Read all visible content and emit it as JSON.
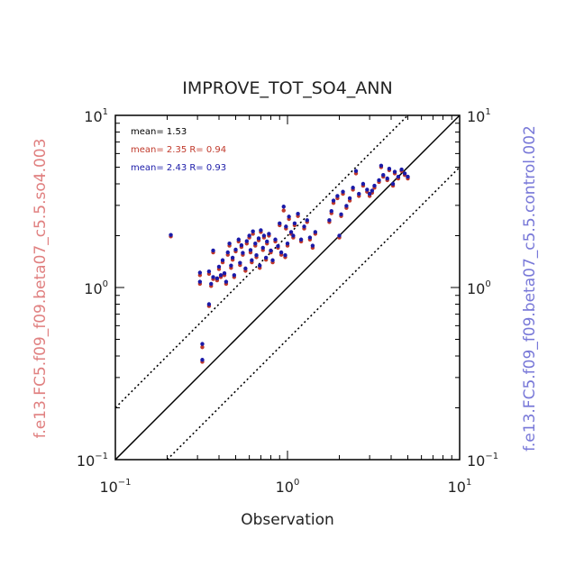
{
  "chart_data": {
    "type": "scatter",
    "title": "IMPROVE_TOT_SO4_ANN",
    "xlabel": "Observation",
    "ylabel_left": "f.e13.FC5.f09_f09.beta07_c5.5.so4.003",
    "ylabel_right": "f.e13.FC5.f09_f09.beta07_c5.5.control.002",
    "xscale": "log",
    "yscale": "log",
    "xlim": [
      0.1,
      10
    ],
    "ylim": [
      0.1,
      10
    ],
    "ticks": [
      {
        "value": 0.1,
        "base": "10",
        "exp": "−1"
      },
      {
        "value": 1,
        "base": "10",
        "exp": "0"
      },
      {
        "value": 10,
        "base": "10",
        "exp": "1"
      }
    ],
    "reference_lines": [
      {
        "name": "1:1",
        "factor": 1,
        "style": "solid"
      },
      {
        "name": "2:1",
        "factor": 2,
        "style": "dotted"
      },
      {
        "name": "1:2",
        "factor": 0.5,
        "style": "dotted"
      }
    ],
    "stats": [
      {
        "text": "mean= 1.53",
        "color": "#000000"
      },
      {
        "text": "mean= 2.35 R= 0.94",
        "color": "#c0392b"
      },
      {
        "text": "mean= 2.43 R= 0.93",
        "color": "#1a1aa8"
      }
    ],
    "series": [
      {
        "name": "f.e13.FC5.f09_f09.beta07_c5.5.so4.003",
        "color": "#c0392b",
        "points": []
      },
      {
        "name": "f.e13.FC5.f09_f09.beta07_c5.5.control.002",
        "color": "#1a1aa8",
        "points": []
      }
    ],
    "scatter_points": [
      [
        0.21,
        1.98,
        2.02
      ],
      [
        0.31,
        1.05,
        1.08
      ],
      [
        0.31,
        1.18,
        1.22
      ],
      [
        0.32,
        0.45,
        0.47
      ],
      [
        0.32,
        0.37,
        0.38
      ],
      [
        0.35,
        0.78,
        0.8
      ],
      [
        0.35,
        1.2,
        1.24
      ],
      [
        0.36,
        1.02,
        1.05
      ],
      [
        0.37,
        1.12,
        1.15
      ],
      [
        0.37,
        1.6,
        1.64
      ],
      [
        0.39,
        1.1,
        1.13
      ],
      [
        0.4,
        1.28,
        1.32
      ],
      [
        0.41,
        1.15,
        1.18
      ],
      [
        0.42,
        1.4,
        1.44
      ],
      [
        0.43,
        1.18,
        1.21
      ],
      [
        0.44,
        1.05,
        1.08
      ],
      [
        0.45,
        1.55,
        1.6
      ],
      [
        0.46,
        1.75,
        1.8
      ],
      [
        0.47,
        1.3,
        1.34
      ],
      [
        0.48,
        1.45,
        1.49
      ],
      [
        0.49,
        1.15,
        1.18
      ],
      [
        0.5,
        1.62,
        1.66
      ],
      [
        0.52,
        1.85,
        1.9
      ],
      [
        0.53,
        1.35,
        1.39
      ],
      [
        0.54,
        1.72,
        1.76
      ],
      [
        0.55,
        1.55,
        1.59
      ],
      [
        0.57,
        1.25,
        1.29
      ],
      [
        0.58,
        1.8,
        1.86
      ],
      [
        0.6,
        1.95,
        2.0
      ],
      [
        0.61,
        1.6,
        1.65
      ],
      [
        0.62,
        1.4,
        1.44
      ],
      [
        0.63,
        2.05,
        2.12
      ],
      [
        0.65,
        1.75,
        1.8
      ],
      [
        0.66,
        1.5,
        1.54
      ],
      [
        0.68,
        1.88,
        1.93
      ],
      [
        0.69,
        1.3,
        1.34
      ],
      [
        0.7,
        2.1,
        2.15
      ],
      [
        0.72,
        1.65,
        1.7
      ],
      [
        0.73,
        1.95,
        2.0
      ],
      [
        0.75,
        1.45,
        1.49
      ],
      [
        0.76,
        1.8,
        1.85
      ],
      [
        0.78,
        2.0,
        2.05
      ],
      [
        0.8,
        1.6,
        1.64
      ],
      [
        0.82,
        1.4,
        1.44
      ],
      [
        0.85,
        1.85,
        1.9
      ],
      [
        0.88,
        1.7,
        1.74
      ],
      [
        0.9,
        2.3,
        2.36
      ],
      [
        0.92,
        1.55,
        1.6
      ],
      [
        0.95,
        2.8,
        2.95
      ],
      [
        0.97,
        1.5,
        1.54
      ],
      [
        0.98,
        2.2,
        2.26
      ],
      [
        1.0,
        1.75,
        1.8
      ],
      [
        1.02,
        2.5,
        2.58
      ],
      [
        1.05,
        2.05,
        2.1
      ],
      [
        1.08,
        1.95,
        2.0
      ],
      [
        1.1,
        2.3,
        2.36
      ],
      [
        1.15,
        2.6,
        2.68
      ],
      [
        1.2,
        1.85,
        1.9
      ],
      [
        1.25,
        2.2,
        2.26
      ],
      [
        1.3,
        2.4,
        2.46
      ],
      [
        1.35,
        1.9,
        1.95
      ],
      [
        1.4,
        1.7,
        1.75
      ],
      [
        1.45,
        2.05,
        2.1
      ],
      [
        1.75,
        2.4,
        2.46
      ],
      [
        1.8,
        2.7,
        2.78
      ],
      [
        1.85,
        3.1,
        3.2
      ],
      [
        1.95,
        3.3,
        3.4
      ],
      [
        2.0,
        1.95,
        2.0
      ],
      [
        2.05,
        2.6,
        2.66
      ],
      [
        2.1,
        3.5,
        3.6
      ],
      [
        2.2,
        2.9,
        2.98
      ],
      [
        2.3,
        3.2,
        3.3
      ],
      [
        2.4,
        3.7,
        3.8
      ],
      [
        2.5,
        4.6,
        4.75
      ],
      [
        2.6,
        3.4,
        3.5
      ],
      [
        2.75,
        3.9,
        4.0
      ],
      [
        2.9,
        3.6,
        3.7
      ],
      [
        3.0,
        3.4,
        3.5
      ],
      [
        3.1,
        3.55,
        3.65
      ],
      [
        3.2,
        3.8,
        3.9
      ],
      [
        3.4,
        4.1,
        4.2
      ],
      [
        3.5,
        5.0,
        5.1
      ],
      [
        3.6,
        4.4,
        4.5
      ],
      [
        3.8,
        4.2,
        4.3
      ],
      [
        3.9,
        4.8,
        4.9
      ],
      [
        4.1,
        3.9,
        4.0
      ],
      [
        4.2,
        4.6,
        4.7
      ],
      [
        4.4,
        4.3,
        4.4
      ],
      [
        4.6,
        4.75,
        4.85
      ],
      [
        4.8,
        4.5,
        4.6
      ],
      [
        5.0,
        4.3,
        4.4
      ]
    ]
  }
}
